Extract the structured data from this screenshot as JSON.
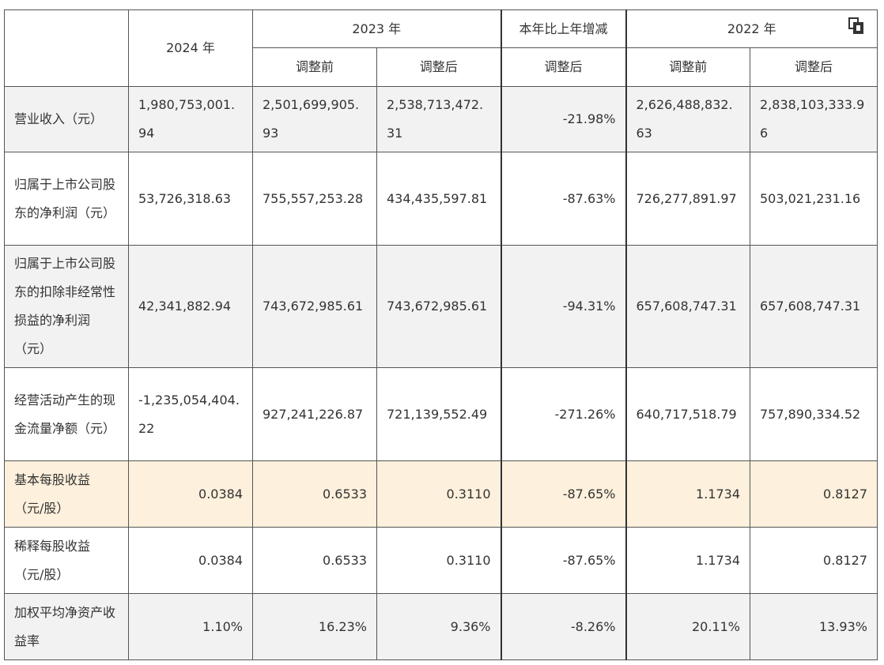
{
  "header": {
    "y2024": "2024 年",
    "y2023": "2023 年",
    "yoy": "本年比上年增减",
    "y2022": "2022 年",
    "before_2023": "调整前",
    "after_2023": "调整后",
    "after_yoy": "调整后",
    "before_2022": "调整前",
    "after_2022": "调整后",
    "copy_icon": "copy-icon"
  },
  "rows": [
    {
      "label": "营业收入（元）",
      "v2024": "1,980,753,001.94",
      "b2023": "2,501,699,905.93",
      "a2023": "2,538,713,472.31",
      "yoy": "-21.98%",
      "b2022": "2,626,488,832.63",
      "a2022": "2,838,103,333.96"
    },
    {
      "label": "归属于上市公司股东的净利润（元）",
      "v2024": "53,726,318.63",
      "b2023": "755,557,253.28",
      "a2023": "434,435,597.81",
      "yoy": "-87.63%",
      "b2022": "726,277,891.97",
      "a2022": "503,021,231.16"
    },
    {
      "label": "归属于上市公司股东的扣除非经常性损益的净利润（元）",
      "v2024": "42,341,882.94",
      "b2023": "743,672,985.61",
      "a2023": "743,672,985.61",
      "yoy": "-94.31%",
      "b2022": "657,608,747.31",
      "a2022": "657,608,747.31"
    },
    {
      "label": "经营活动产生的现金流量净额（元）",
      "v2024": "-1,235,054,404.22",
      "b2023": "927,241,226.87",
      "a2023": "721,139,552.49",
      "yoy": "-271.26%",
      "b2022": "640,717,518.79",
      "a2022": "757,890,334.52"
    },
    {
      "label": "基本每股收益（元/股）",
      "v2024": "0.0384",
      "b2023": "0.6533",
      "a2023": "0.3110",
      "yoy": "-87.65%",
      "b2022": "1.1734",
      "a2022": "0.8127"
    },
    {
      "label": "稀释每股收益（元/股）",
      "v2024": "0.0384",
      "b2023": "0.6533",
      "a2023": "0.3110",
      "yoy": "-87.65%",
      "b2022": "1.1734",
      "a2022": "0.8127"
    },
    {
      "label": "加权平均净资产收益率",
      "v2024": "1.10%",
      "b2023": "16.23%",
      "a2023": "9.36%",
      "yoy": "-8.26%",
      "b2022": "20.11%",
      "a2022": "13.93%"
    }
  ]
}
